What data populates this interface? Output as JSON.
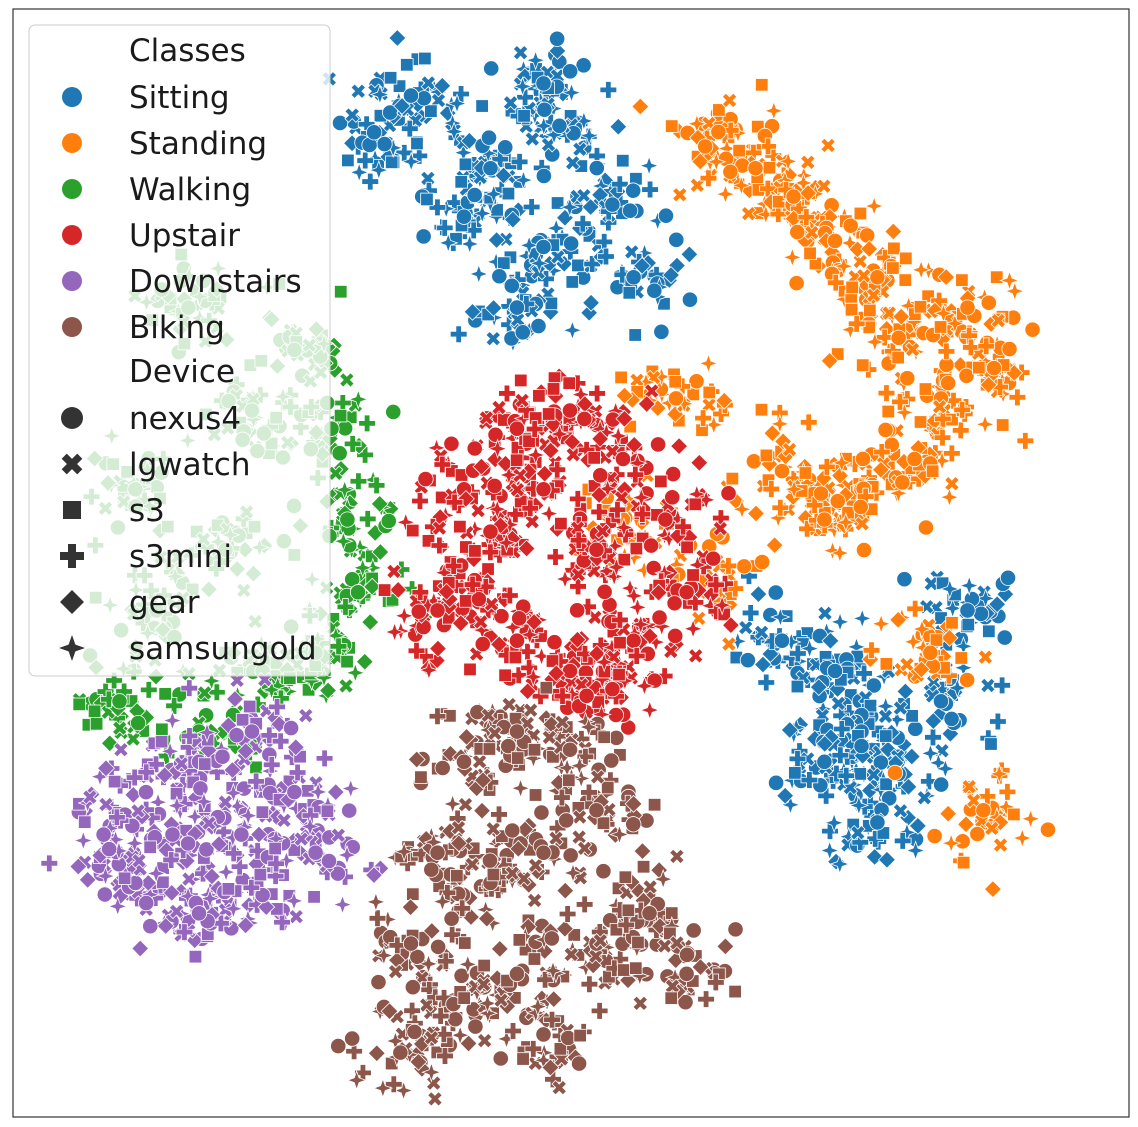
{
  "chart_data": {
    "type": "scatter",
    "title": "",
    "xlabel": "",
    "ylabel": "",
    "axes_visible": false,
    "legend_placement": "top-left",
    "legend": {
      "classes_title": "Classes",
      "classes": [
        {
          "name": "Sitting",
          "color": "#1f77b4"
        },
        {
          "name": "Standing",
          "color": "#ff7f0e"
        },
        {
          "name": "Walking",
          "color": "#2ca02c"
        },
        {
          "name": "Upstair",
          "color": "#d62728"
        },
        {
          "name": "Downstairs",
          "color": "#9467bd"
        },
        {
          "name": "Biking",
          "color": "#8c564b"
        }
      ],
      "device_title": "Device",
      "devices": [
        {
          "name": "nexus4",
          "marker": "circle-icon"
        },
        {
          "name": "lgwatch",
          "marker": "x-icon"
        },
        {
          "name": "s3",
          "marker": "square-icon"
        },
        {
          "name": "s3mini",
          "marker": "plus-icon"
        },
        {
          "name": "gear",
          "marker": "diamond-icon"
        },
        {
          "name": "samsungold",
          "marker": "star4-icon"
        }
      ]
    },
    "clusters": [
      {
        "class": "Walking",
        "points": [
          [
            -72,
            55
          ],
          [
            -60,
            38
          ],
          [
            -82,
            25
          ],
          [
            -65,
            15
          ],
          [
            -78,
            5
          ],
          [
            -58,
            -5
          ],
          [
            -70,
            -15
          ],
          [
            -85,
            -10
          ],
          [
            -52,
            48
          ],
          [
            -45,
            35
          ],
          [
            -42,
            20
          ],
          [
            -40,
            8
          ],
          [
            -48,
            -2
          ]
        ]
      },
      {
        "class": "Sitting",
        "points": [
          [
            -35,
            82
          ],
          [
            -20,
            70
          ],
          [
            -15,
            78
          ],
          [
            -5,
            65
          ],
          [
            -10,
            55
          ],
          [
            -2,
            85
          ],
          [
            8,
            72
          ],
          [
            12,
            60
          ],
          [
            -30,
            90
          ],
          [
            -5,
            92
          ],
          [
            40,
            0
          ],
          [
            50,
            -5
          ],
          [
            55,
            -15
          ],
          [
            62,
            -22
          ],
          [
            70,
            -10
          ],
          [
            75,
            5
          ],
          [
            48,
            -20
          ],
          [
            58,
            -30
          ]
        ]
      },
      {
        "class": "Standing",
        "points": [
          [
            28,
            84
          ],
          [
            35,
            78
          ],
          [
            42,
            72
          ],
          [
            50,
            66
          ],
          [
            58,
            60
          ],
          [
            62,
            50
          ],
          [
            70,
            40
          ],
          [
            65,
            30
          ],
          [
            55,
            25
          ],
          [
            48,
            20
          ],
          [
            40,
            28
          ],
          [
            20,
            40
          ],
          [
            10,
            20
          ],
          [
            25,
            10
          ],
          [
            75,
            55
          ],
          [
            80,
            45
          ],
          [
            68,
            -2
          ],
          [
            78,
            -28
          ]
        ]
      },
      {
        "class": "Upstair",
        "points": [
          [
            -20,
            25
          ],
          [
            -10,
            35
          ],
          [
            0,
            38
          ],
          [
            10,
            30
          ],
          [
            18,
            20
          ],
          [
            22,
            8
          ],
          [
            12,
            0
          ],
          [
            0,
            -5
          ],
          [
            -10,
            0
          ],
          [
            -18,
            10
          ],
          [
            -25,
            5
          ],
          [
            -15,
            18
          ],
          [
            5,
            15
          ],
          [
            -5,
            25
          ],
          [
            8,
            -8
          ]
        ]
      },
      {
        "class": "Downstairs",
        "points": [
          [
            -80,
            -25
          ],
          [
            -70,
            -20
          ],
          [
            -60,
            -15
          ],
          [
            -52,
            -25
          ],
          [
            -48,
            -35
          ],
          [
            -58,
            -42
          ],
          [
            -70,
            -45
          ],
          [
            -82,
            -40
          ],
          [
            -88,
            -32
          ],
          [
            -75,
            -32
          ],
          [
            -62,
            -32
          ]
        ]
      },
      {
        "class": "Biking",
        "points": [
          [
            -20,
            -20
          ],
          [
            -10,
            -15
          ],
          [
            0,
            -18
          ],
          [
            5,
            -28
          ],
          [
            -5,
            -35
          ],
          [
            -15,
            -40
          ],
          [
            -25,
            -35
          ],
          [
            -30,
            -50
          ],
          [
            -22,
            -60
          ],
          [
            -10,
            -55
          ],
          [
            -5,
            -65
          ],
          [
            5,
            -50
          ],
          [
            -32,
            -68
          ],
          [
            15,
            -45
          ],
          [
            22,
            -55
          ]
        ]
      }
    ],
    "xlim": [
      -100,
      100
    ],
    "ylim": [
      -75,
      100
    ]
  }
}
